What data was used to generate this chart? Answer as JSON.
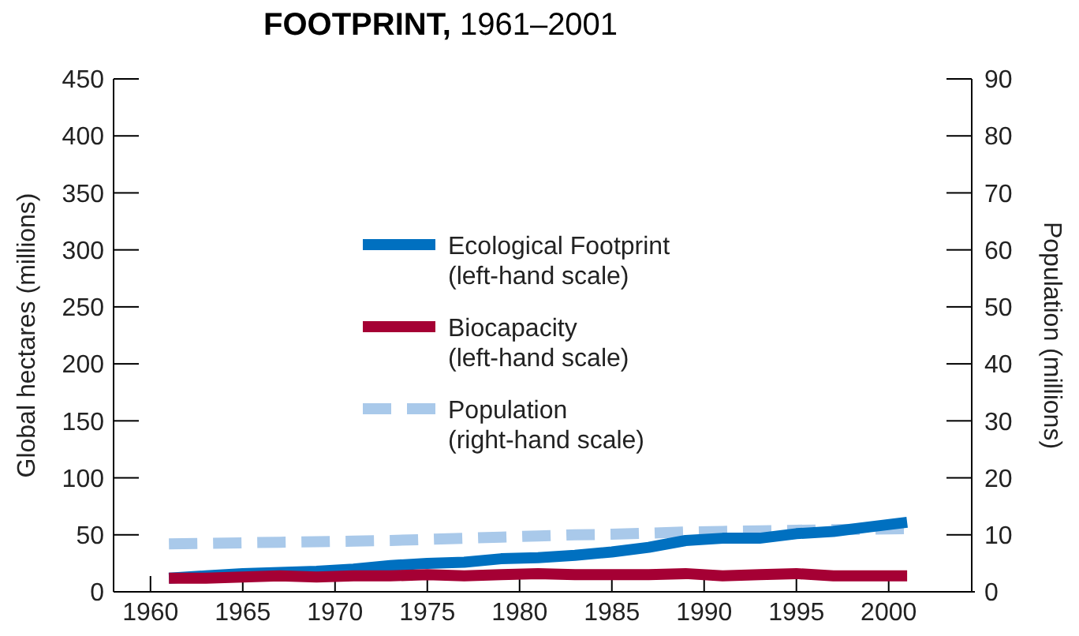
{
  "chart_data": {
    "type": "line",
    "title": "FOOTPRINT, 1961–2001",
    "xlabel": null,
    "ylabel": "Global hectares (millions)",
    "y2label": "Population (millions)",
    "x": [
      1961,
      1963,
      1965,
      1967,
      1969,
      1971,
      1973,
      1975,
      1977,
      1979,
      1981,
      1983,
      1985,
      1987,
      1989,
      1991,
      1993,
      1995,
      1997,
      1999,
      2001
    ],
    "series": [
      {
        "name": "Ecological Footprint\n(left-hand scale)",
        "color": "#0070c0",
        "line_style": "solid",
        "values": [
          12,
          14,
          16,
          17,
          18,
          20,
          23,
          25,
          26,
          29,
          30,
          32,
          35,
          39,
          45,
          47,
          47,
          51,
          53,
          57,
          61
        ]
      },
      {
        "name": "Biocapacity\n(left-hand scale)",
        "color": "#a50034",
        "line_style": "solid",
        "values": [
          12,
          12,
          13,
          14,
          13,
          14,
          14,
          15,
          14,
          15,
          16,
          15,
          15,
          15,
          16,
          14,
          15,
          16,
          14,
          14,
          14
        ]
      },
      {
        "name": "Population\n(right-hand scale)",
        "color": "#a9c9ea",
        "line_style": "dashed",
        "axis": "y2",
        "values": [
          8.4,
          8.5,
          8.6,
          8.7,
          8.8,
          8.9,
          9.0,
          9.2,
          9.4,
          9.6,
          9.8,
          10.0,
          10.1,
          10.3,
          10.5,
          10.6,
          10.7,
          10.8,
          10.9,
          11.0,
          11.1
        ]
      }
    ],
    "xlim": [
      1958,
      2004.5
    ],
    "xticks": [
      1960,
      1965,
      1970,
      1975,
      1980,
      1985,
      1990,
      1995,
      2000
    ],
    "ylim": [
      0,
      450
    ],
    "yticks": [
      0,
      50,
      100,
      150,
      200,
      250,
      300,
      350,
      400,
      450
    ],
    "y2lim": [
      0,
      90
    ],
    "y2ticks": [
      0,
      10,
      20,
      30,
      40,
      50,
      60,
      70,
      80,
      90
    ],
    "grid": false,
    "legend": "center"
  }
}
